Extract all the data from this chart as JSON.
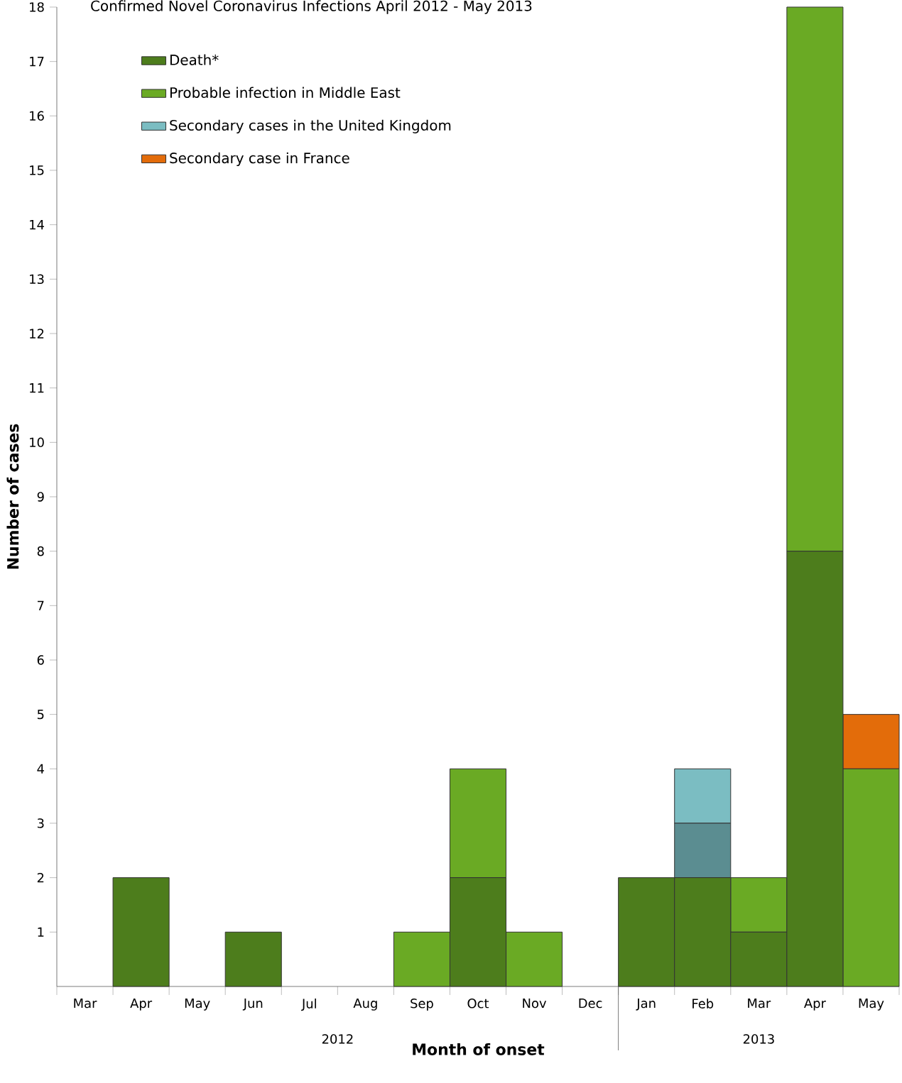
{
  "chart_data": {
    "type": "bar",
    "title": "Confirmed Novel Coronavirus Infections April 2012 - May 2013",
    "xlabel": "Month of onset",
    "ylabel": "Number of cases",
    "categories": [
      "Mar",
      "Apr",
      "May",
      "Jun",
      "Jul",
      "Aug",
      "Sep",
      "Oct",
      "Nov",
      "Dec",
      "Jan",
      "Feb",
      "Mar",
      "Apr",
      "May"
    ],
    "stacked": true,
    "series": [
      {
        "name": "Death*",
        "color": "#4d7d1c",
        "values": [
          0,
          2,
          0,
          1,
          0,
          0,
          0,
          2,
          0,
          0,
          2,
          2,
          1,
          8,
          0
        ]
      },
      {
        "name": "Probable infection in Middle East",
        "color": "#6aaa24",
        "values": [
          0,
          0,
          0,
          0,
          0,
          0,
          1,
          2,
          1,
          0,
          0,
          0,
          1,
          10,
          4
        ]
      },
      {
        "color": "#5b8d91",
        "values": [
          0,
          0,
          0,
          0,
          0,
          0,
          0,
          0,
          0,
          0,
          0,
          1,
          0,
          0,
          0
        ]
      },
      {
        "name": "Secondary cases in the United Kingdom",
        "color": "#7bbdc2",
        "values": [
          0,
          0,
          0,
          0,
          0,
          0,
          0,
          0,
          0,
          0,
          0,
          1,
          0,
          0,
          0
        ]
      },
      {
        "name": "Secondary case in France",
        "color": "#e36c0a",
        "values": [
          0,
          0,
          0,
          0,
          0,
          0,
          0,
          0,
          0,
          0,
          0,
          0,
          0,
          0,
          1
        ]
      }
    ],
    "ylim": [
      0,
      18
    ],
    "yticks": [
      1,
      2,
      3,
      4,
      5,
      6,
      7,
      8,
      9,
      10,
      11,
      12,
      13,
      14,
      15,
      16,
      17,
      18
    ],
    "legend": "top left",
    "grid": false,
    "annotations": [
      "2012",
      "2013"
    ]
  }
}
